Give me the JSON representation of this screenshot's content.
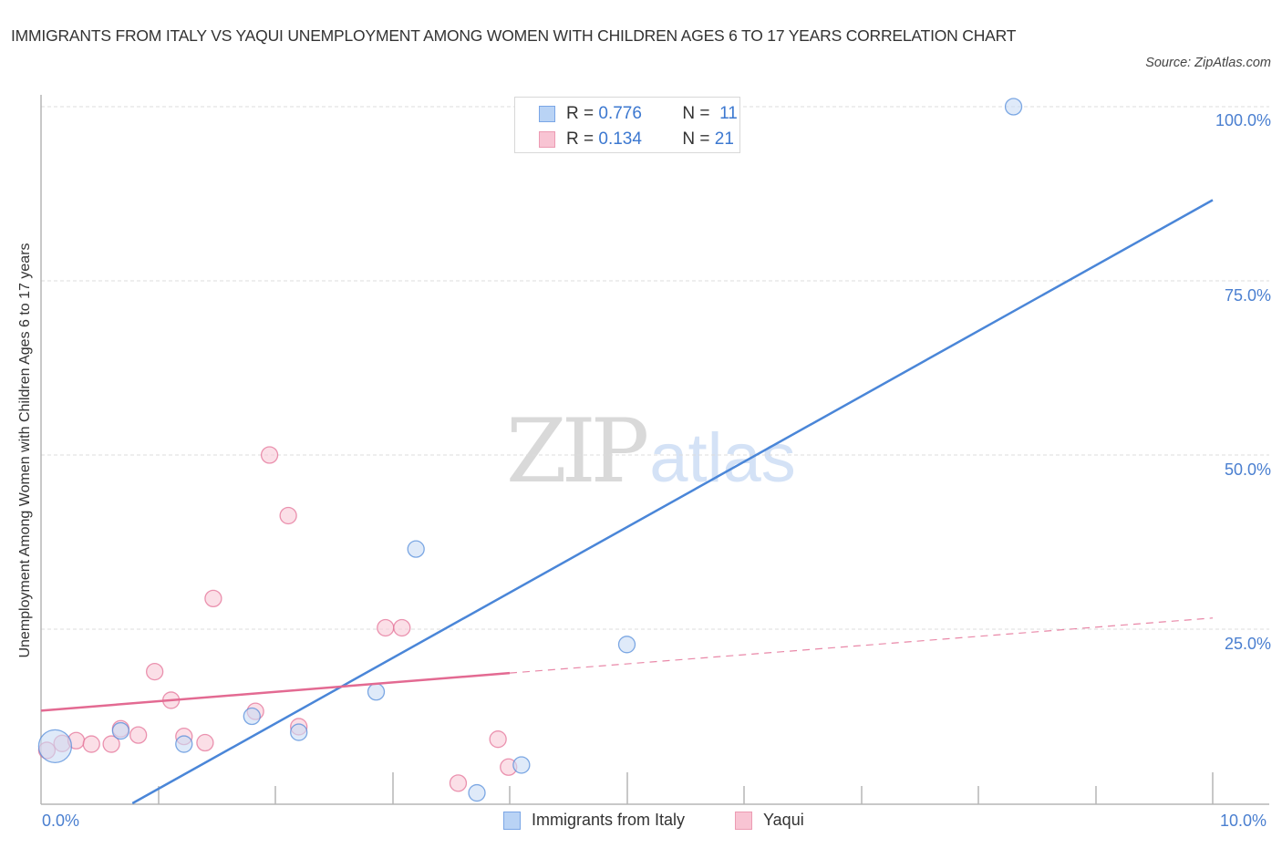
{
  "chart_data": {
    "type": "scatter",
    "title": "IMMIGRANTS FROM ITALY VS YAQUI UNEMPLOYMENT AMONG WOMEN WITH CHILDREN AGES 6 TO 17 YEARS CORRELATION CHART",
    "source": "Source: ZipAtlas.com",
    "xlabel": "",
    "ylabel": "Unemployment Among Women with Children Ages 6 to 17 years",
    "xlim": [
      0,
      10
    ],
    "ylim": [
      0,
      100
    ],
    "x_tick_labels": [
      "0.0%",
      "10.0%"
    ],
    "y_tick_labels": [
      "100.0%",
      "75.0%",
      "50.0%",
      "25.0%"
    ],
    "grid": true,
    "legend_position": "top-center and bottom",
    "series": [
      {
        "name": "Immigrants from Italy",
        "color": "#4a86d8",
        "fill": "#c9dcf5",
        "R": "0.776",
        "N": "11",
        "points": [
          {
            "x": 0.12,
            "y": 8.2,
            "size": "large"
          },
          {
            "x": 0.68,
            "y": 10.4
          },
          {
            "x": 1.22,
            "y": 8.5
          },
          {
            "x": 1.8,
            "y": 12.5
          },
          {
            "x": 2.2,
            "y": 10.2
          },
          {
            "x": 2.86,
            "y": 16.0
          },
          {
            "x": 3.2,
            "y": 36.5
          },
          {
            "x": 3.72,
            "y": 1.5
          },
          {
            "x": 4.1,
            "y": 5.5
          },
          {
            "x": 5.0,
            "y": 22.8
          },
          {
            "x": 8.3,
            "y": 100.0
          }
        ],
        "trendline": {
          "x1": 0.78,
          "y1": 0,
          "x2": 10.0,
          "y2": 86.6,
          "style": "solid"
        }
      },
      {
        "name": "Yaqui",
        "color": "#e36a92",
        "fill": "#f8c9d7",
        "R": "0.134",
        "N": "21",
        "points": [
          {
            "x": 0.05,
            "y": 7.6
          },
          {
            "x": 0.18,
            "y": 8.6
          },
          {
            "x": 0.3,
            "y": 9.0
          },
          {
            "x": 0.43,
            "y": 8.5
          },
          {
            "x": 0.6,
            "y": 8.5
          },
          {
            "x": 0.68,
            "y": 10.7
          },
          {
            "x": 0.83,
            "y": 9.8
          },
          {
            "x": 0.97,
            "y": 18.9
          },
          {
            "x": 1.11,
            "y": 14.8
          },
          {
            "x": 1.22,
            "y": 9.6
          },
          {
            "x": 1.4,
            "y": 8.7
          },
          {
            "x": 1.47,
            "y": 29.4
          },
          {
            "x": 1.83,
            "y": 13.2
          },
          {
            "x": 1.95,
            "y": 50.0
          },
          {
            "x": 2.11,
            "y": 41.3
          },
          {
            "x": 2.2,
            "y": 11.0
          },
          {
            "x": 2.94,
            "y": 25.2
          },
          {
            "x": 3.08,
            "y": 25.2
          },
          {
            "x": 3.56,
            "y": 2.9
          },
          {
            "x": 3.9,
            "y": 9.2
          },
          {
            "x": 3.99,
            "y": 5.2
          }
        ],
        "trendline": {
          "x1": 0,
          "y1": 13.3,
          "x2": 4.0,
          "y2": 18.7,
          "style": "solid",
          "extended_to": {
            "x": 10.0,
            "y": 26.6,
            "style": "dashed"
          }
        }
      }
    ]
  },
  "header": {
    "title": "IMMIGRANTS FROM ITALY VS YAQUI UNEMPLOYMENT AMONG WOMEN WITH CHILDREN AGES 6 TO 17 YEARS CORRELATION CHART",
    "source": "Source: ZipAtlas.com"
  },
  "axes": {
    "ylabel": "Unemployment Among Women with Children Ages 6 to 17 years",
    "y_ticks": [
      "100.0%",
      "75.0%",
      "50.0%",
      "25.0%"
    ],
    "x_min_label": "0.0%",
    "x_max_label": "10.0%"
  },
  "legend": {
    "rows": [
      {
        "r_label": "R =",
        "r_value": "0.776",
        "n_label": "N =",
        "n_value": "11"
      },
      {
        "r_label": "R =",
        "r_value": "0.134",
        "n_label": "N =",
        "n_value": "21"
      }
    ],
    "bottom": [
      "Immigrants from Italy",
      "Yaqui"
    ]
  },
  "watermark": {
    "zip": "ZIP",
    "atlas": "atlas"
  }
}
